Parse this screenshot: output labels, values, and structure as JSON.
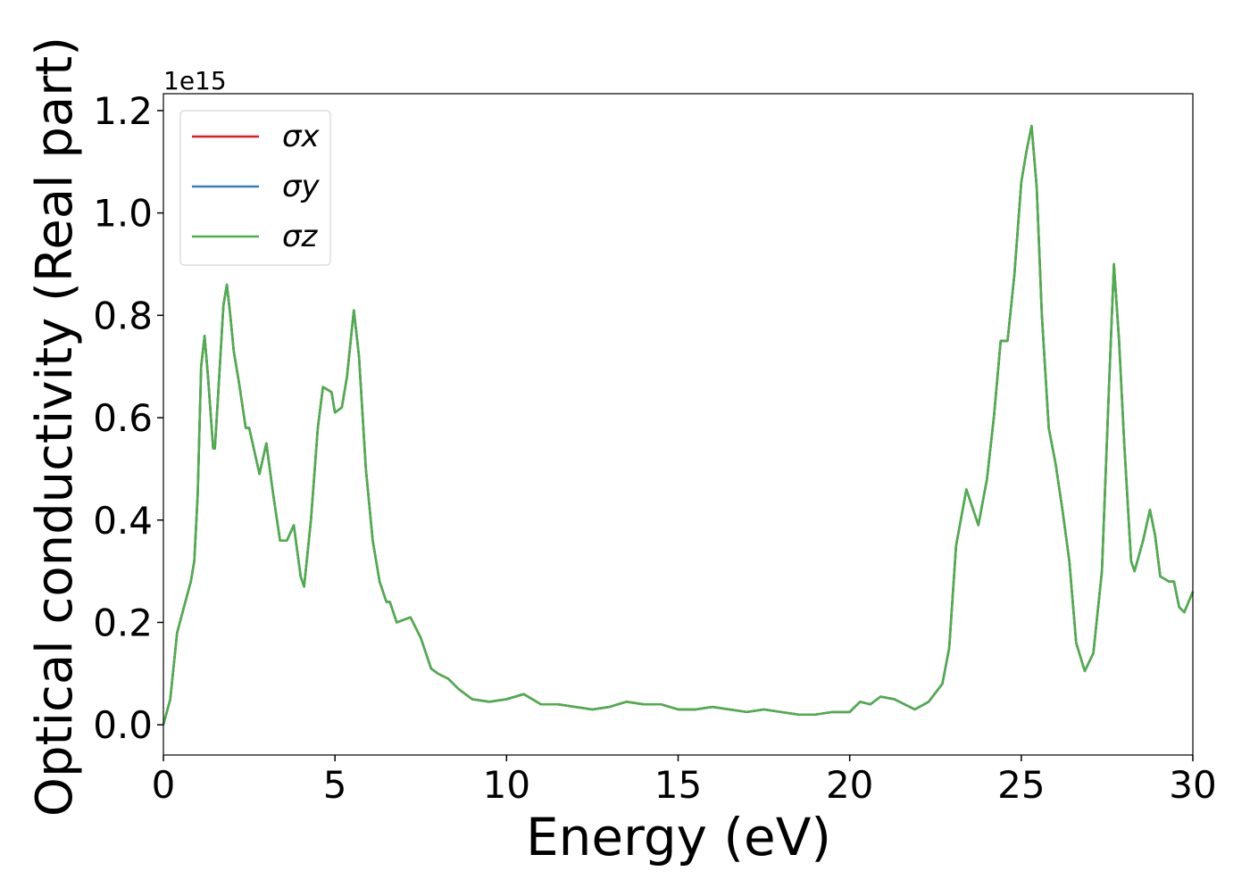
{
  "chart_data": {
    "type": "line",
    "xlabel": "Energy (eV)",
    "ylabel": "Optical conductivity (Real part)",
    "y_offset_label": "1e15",
    "x": [
      0,
      0.2,
      0.4,
      0.6,
      0.8,
      0.9,
      1.0,
      1.1,
      1.2,
      1.3,
      1.45,
      1.5,
      1.6,
      1.75,
      1.85,
      1.95,
      2.05,
      2.2,
      2.4,
      2.5,
      2.6,
      2.8,
      3.0,
      3.2,
      3.4,
      3.6,
      3.8,
      4.0,
      4.1,
      4.3,
      4.5,
      4.65,
      4.9,
      5.0,
      5.2,
      5.35,
      5.55,
      5.7,
      5.9,
      6.1,
      6.3,
      6.5,
      6.6,
      6.8,
      7.2,
      7.5,
      7.8,
      8.0,
      8.3,
      8.6,
      9.0,
      9.5,
      10.0,
      10.5,
      11.0,
      11.5,
      12.0,
      12.5,
      13.0,
      13.5,
      14.0,
      14.5,
      15.0,
      15.5,
      16.0,
      16.5,
      17.0,
      17.5,
      18.0,
      18.5,
      19.0,
      19.5,
      20.0,
      20.3,
      20.6,
      20.9,
      21.3,
      21.6,
      21.9,
      22.3,
      22.7,
      22.9,
      23.1,
      23.4,
      23.6,
      23.75,
      24.0,
      24.2,
      24.4,
      24.6,
      24.8,
      25.0,
      25.15,
      25.3,
      25.45,
      25.6,
      25.8,
      26.0,
      26.2,
      26.4,
      26.6,
      26.85,
      27.1,
      27.35,
      27.55,
      27.7,
      27.85,
      28.0,
      28.2,
      28.3,
      28.55,
      28.75,
      28.9,
      29.05,
      29.3,
      29.45,
      29.6,
      29.75,
      30.0
    ],
    "series": [
      {
        "name": "σx",
        "color": "#e41a1c",
        "values": [
          0.0,
          0.05,
          0.18,
          0.23,
          0.28,
          0.32,
          0.45,
          0.7,
          0.76,
          0.68,
          0.54,
          0.54,
          0.65,
          0.82,
          0.86,
          0.8,
          0.73,
          0.67,
          0.58,
          0.58,
          0.55,
          0.49,
          0.55,
          0.45,
          0.36,
          0.36,
          0.39,
          0.29,
          0.27,
          0.4,
          0.58,
          0.66,
          0.65,
          0.61,
          0.62,
          0.68,
          0.81,
          0.72,
          0.5,
          0.36,
          0.28,
          0.24,
          0.24,
          0.2,
          0.21,
          0.17,
          0.11,
          0.1,
          0.09,
          0.07,
          0.05,
          0.045,
          0.05,
          0.06,
          0.04,
          0.04,
          0.035,
          0.03,
          0.035,
          0.045,
          0.04,
          0.04,
          0.03,
          0.03,
          0.035,
          0.03,
          0.025,
          0.03,
          0.025,
          0.02,
          0.02,
          0.025,
          0.025,
          0.045,
          0.04,
          0.055,
          0.05,
          0.04,
          0.03,
          0.045,
          0.08,
          0.15,
          0.35,
          0.46,
          0.42,
          0.39,
          0.48,
          0.6,
          0.75,
          0.75,
          0.88,
          1.06,
          1.12,
          1.17,
          1.05,
          0.8,
          0.58,
          0.51,
          0.42,
          0.32,
          0.16,
          0.105,
          0.14,
          0.3,
          0.65,
          0.9,
          0.75,
          0.55,
          0.32,
          0.3,
          0.36,
          0.42,
          0.37,
          0.29,
          0.28,
          0.28,
          0.23,
          0.22,
          0.26
        ]
      },
      {
        "name": "σy",
        "color": "#377eb8",
        "values": [
          0.0,
          0.05,
          0.18,
          0.23,
          0.28,
          0.32,
          0.45,
          0.7,
          0.76,
          0.68,
          0.54,
          0.54,
          0.65,
          0.82,
          0.86,
          0.8,
          0.73,
          0.67,
          0.58,
          0.58,
          0.55,
          0.49,
          0.55,
          0.45,
          0.36,
          0.36,
          0.39,
          0.29,
          0.27,
          0.4,
          0.58,
          0.66,
          0.65,
          0.61,
          0.62,
          0.68,
          0.81,
          0.72,
          0.5,
          0.36,
          0.28,
          0.24,
          0.24,
          0.2,
          0.21,
          0.17,
          0.11,
          0.1,
          0.09,
          0.07,
          0.05,
          0.045,
          0.05,
          0.06,
          0.04,
          0.04,
          0.035,
          0.03,
          0.035,
          0.045,
          0.04,
          0.04,
          0.03,
          0.03,
          0.035,
          0.03,
          0.025,
          0.03,
          0.025,
          0.02,
          0.02,
          0.025,
          0.025,
          0.045,
          0.04,
          0.055,
          0.05,
          0.04,
          0.03,
          0.045,
          0.08,
          0.15,
          0.35,
          0.46,
          0.42,
          0.39,
          0.48,
          0.6,
          0.75,
          0.75,
          0.88,
          1.06,
          1.12,
          1.17,
          1.05,
          0.8,
          0.58,
          0.51,
          0.42,
          0.32,
          0.16,
          0.105,
          0.14,
          0.3,
          0.65,
          0.9,
          0.75,
          0.55,
          0.32,
          0.3,
          0.36,
          0.42,
          0.37,
          0.29,
          0.28,
          0.28,
          0.23,
          0.22,
          0.26
        ]
      },
      {
        "name": "σz",
        "color": "#4daf4a",
        "values": [
          0.0,
          0.05,
          0.18,
          0.23,
          0.28,
          0.32,
          0.45,
          0.7,
          0.76,
          0.68,
          0.54,
          0.54,
          0.65,
          0.82,
          0.86,
          0.8,
          0.73,
          0.67,
          0.58,
          0.58,
          0.55,
          0.49,
          0.55,
          0.45,
          0.36,
          0.36,
          0.39,
          0.29,
          0.27,
          0.4,
          0.58,
          0.66,
          0.65,
          0.61,
          0.62,
          0.68,
          0.81,
          0.72,
          0.5,
          0.36,
          0.28,
          0.24,
          0.24,
          0.2,
          0.21,
          0.17,
          0.11,
          0.1,
          0.09,
          0.07,
          0.05,
          0.045,
          0.05,
          0.06,
          0.04,
          0.04,
          0.035,
          0.03,
          0.035,
          0.045,
          0.04,
          0.04,
          0.03,
          0.03,
          0.035,
          0.03,
          0.025,
          0.03,
          0.025,
          0.02,
          0.02,
          0.025,
          0.025,
          0.045,
          0.04,
          0.055,
          0.05,
          0.04,
          0.03,
          0.045,
          0.08,
          0.15,
          0.35,
          0.46,
          0.42,
          0.39,
          0.48,
          0.6,
          0.75,
          0.75,
          0.88,
          1.06,
          1.12,
          1.17,
          1.05,
          0.8,
          0.58,
          0.51,
          0.42,
          0.32,
          0.16,
          0.105,
          0.14,
          0.3,
          0.65,
          0.9,
          0.75,
          0.55,
          0.32,
          0.3,
          0.36,
          0.42,
          0.37,
          0.29,
          0.28,
          0.28,
          0.23,
          0.22,
          0.26
        ]
      }
    ],
    "xlim": [
      0,
      30
    ],
    "xticks": [
      0,
      5,
      10,
      15,
      20,
      25,
      30
    ],
    "ylim": [
      -0.059,
      1.233
    ],
    "yticks": [
      {
        "value": 0,
        "label": "0.0"
      },
      0.2,
      0.4,
      0.6,
      0.8,
      {
        "value": 1,
        "label": "1.0"
      },
      1.2
    ],
    "grid": false,
    "legend": "upper left"
  }
}
